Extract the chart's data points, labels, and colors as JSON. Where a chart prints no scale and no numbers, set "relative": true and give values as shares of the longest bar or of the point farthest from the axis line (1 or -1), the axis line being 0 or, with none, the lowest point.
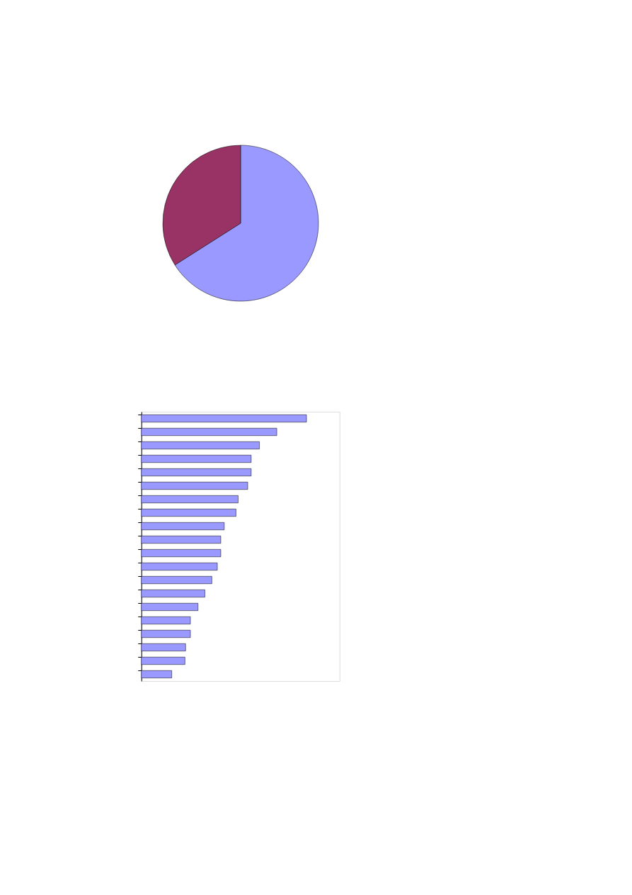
{
  "chart_data": [
    {
      "type": "pie",
      "categories": [
        null,
        null
      ],
      "values": [
        66,
        34
      ],
      "colors": [
        "#9999ff",
        "#993366"
      ]
    },
    {
      "type": "bar",
      "orientation": "horizontal",
      "relative": true,
      "categories": [
        null,
        null,
        null,
        null,
        null,
        null,
        null,
        null,
        null,
        null,
        null,
        null,
        null,
        null,
        null,
        null,
        null,
        null,
        null,
        null
      ],
      "series": [
        {
          "color": "#9999ff",
          "values": [
            1,
            0.82,
            0.715,
            0.665,
            0.665,
            0.644,
            0.586,
            0.573,
            0.502,
            0.481,
            0.481,
            0.46,
            0.427,
            0.385,
            0.343,
            0.297,
            0.297,
            0.268,
            0.264,
            0.184
          ]
        }
      ]
    }
  ]
}
